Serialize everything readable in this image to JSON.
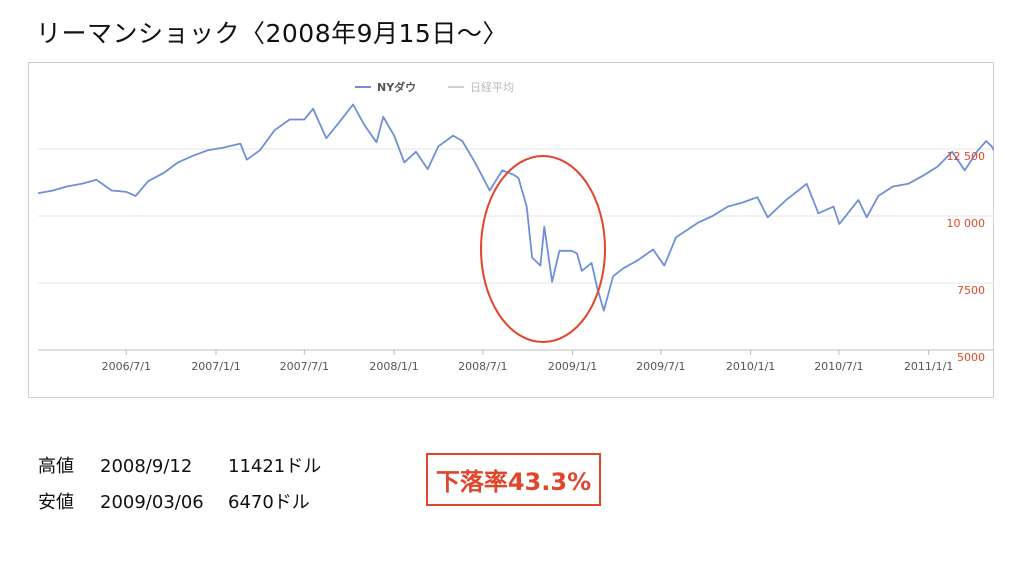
{
  "title": "リーマンショック〈2008年9月15日〜〉",
  "stats": [
    {
      "label": "高値",
      "date": "2008/9/12",
      "value": "11421ドル"
    },
    {
      "label": "安値",
      "date": "2009/03/06",
      "value": "6470ドル"
    }
  ],
  "drop_rate": "下落率43.3%",
  "colors": {
    "series": "#6f8fd8",
    "axis_labels": "#e0462b",
    "annotation": "#e0462b",
    "grid": "#e6e6e6"
  },
  "chart_data": {
    "type": "line",
    "title": "",
    "xlabel": "",
    "ylabel": "",
    "legend_position": "top-center",
    "legend": [
      {
        "name": "NYダウ",
        "active": true
      },
      {
        "name": "日経平均",
        "active": false
      }
    ],
    "x_ticks": [
      "2006/7/1",
      "2007/1/1",
      "2007/7/1",
      "2008/1/1",
      "2008/7/1",
      "2009/1/1",
      "2009/7/1",
      "2010/1/1",
      "2010/7/1",
      "2011/1/1"
    ],
    "y_ticks": [
      {
        "value": 5000,
        "label": "5000"
      },
      {
        "value": 7500,
        "label": "7500"
      },
      {
        "value": 10000,
        "label": "10 000"
      },
      {
        "value": 12500,
        "label": "12 500"
      }
    ],
    "x_range": [
      "2006-01-01",
      "2011-05-15"
    ],
    "ylim": [
      5000,
      15000
    ],
    "grid": true,
    "annotation": "ellipse around the autumn 2008 to spring 2009 decline",
    "series": [
      {
        "name": "NYダウ",
        "points": [
          [
            "2006-01-01",
            10850
          ],
          [
            "2006-02-01",
            10950
          ],
          [
            "2006-03-01",
            11100
          ],
          [
            "2006-04-01",
            11200
          ],
          [
            "2006-05-01",
            11350
          ],
          [
            "2006-06-01",
            10950
          ],
          [
            "2006-07-01",
            10900
          ],
          [
            "2006-07-20",
            10750
          ],
          [
            "2006-08-15",
            11300
          ],
          [
            "2006-09-15",
            11600
          ],
          [
            "2006-10-15",
            12000
          ],
          [
            "2006-11-15",
            12250
          ],
          [
            "2006-12-15",
            12450
          ],
          [
            "2007-01-15",
            12550
          ],
          [
            "2007-02-20",
            12700
          ],
          [
            "2007-03-05",
            12100
          ],
          [
            "2007-04-01",
            12450
          ],
          [
            "2007-05-01",
            13200
          ],
          [
            "2007-06-01",
            13600
          ],
          [
            "2007-07-01",
            13600
          ],
          [
            "2007-07-19",
            14000
          ],
          [
            "2007-08-15",
            12900
          ],
          [
            "2007-09-15",
            13600
          ],
          [
            "2007-10-09",
            14160
          ],
          [
            "2007-11-01",
            13400
          ],
          [
            "2007-11-26",
            12750
          ],
          [
            "2007-12-10",
            13700
          ],
          [
            "2008-01-01",
            13000
          ],
          [
            "2008-01-22",
            12000
          ],
          [
            "2008-02-15",
            12400
          ],
          [
            "2008-03-10",
            11750
          ],
          [
            "2008-04-01",
            12600
          ],
          [
            "2008-05-01",
            13000
          ],
          [
            "2008-05-20",
            12800
          ],
          [
            "2008-06-15",
            12000
          ],
          [
            "2008-07-15",
            10950
          ],
          [
            "2008-08-10",
            11700
          ],
          [
            "2008-09-01",
            11550
          ],
          [
            "2008-09-12",
            11421
          ],
          [
            "2008-09-29",
            10350
          ],
          [
            "2008-10-10",
            8450
          ],
          [
            "2008-10-27",
            8150
          ],
          [
            "2008-11-04",
            9600
          ],
          [
            "2008-11-20",
            7550
          ],
          [
            "2008-12-05",
            8700
          ],
          [
            "2008-12-30",
            8700
          ],
          [
            "2009-01-10",
            8600
          ],
          [
            "2009-01-20",
            7950
          ],
          [
            "2009-02-09",
            8250
          ],
          [
            "2009-02-20",
            7350
          ],
          [
            "2009-03-06",
            6470
          ],
          [
            "2009-03-25",
            7750
          ],
          [
            "2009-04-15",
            8050
          ],
          [
            "2009-05-15",
            8350
          ],
          [
            "2009-06-15",
            8750
          ],
          [
            "2009-07-08",
            8150
          ],
          [
            "2009-08-01",
            9200
          ],
          [
            "2009-09-15",
            9750
          ],
          [
            "2009-10-15",
            10000
          ],
          [
            "2009-11-15",
            10350
          ],
          [
            "2009-12-15",
            10500
          ],
          [
            "2010-01-15",
            10700
          ],
          [
            "2010-02-05",
            9950
          ],
          [
            "2010-03-15",
            10600
          ],
          [
            "2010-04-26",
            11200
          ],
          [
            "2010-05-20",
            10100
          ],
          [
            "2010-06-20",
            10350
          ],
          [
            "2010-07-02",
            9700
          ],
          [
            "2010-08-10",
            10600
          ],
          [
            "2010-08-27",
            9950
          ],
          [
            "2010-09-20",
            10750
          ],
          [
            "2010-10-20",
            11100
          ],
          [
            "2010-11-20",
            11200
          ],
          [
            "2010-12-20",
            11500
          ],
          [
            "2011-01-20",
            11850
          ],
          [
            "2011-02-18",
            12400
          ],
          [
            "2011-03-16",
            11700
          ],
          [
            "2011-04-10",
            12400
          ],
          [
            "2011-04-29",
            12800
          ],
          [
            "2011-05-10",
            12600
          ],
          [
            "2011-05-15",
            12450
          ]
        ]
      }
    ]
  }
}
